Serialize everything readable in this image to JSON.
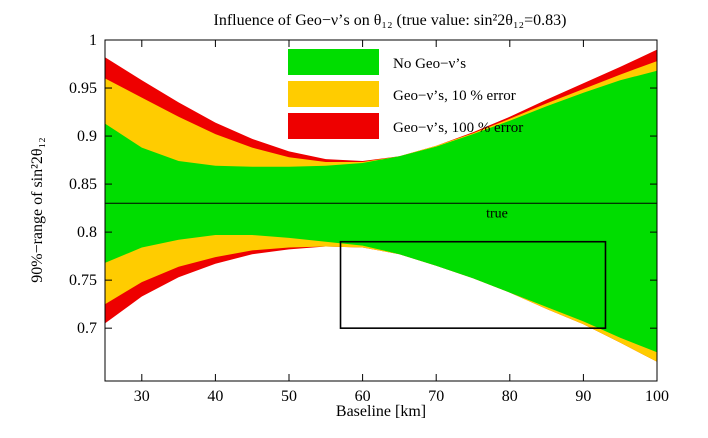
{
  "chart_data": {
    "type": "area",
    "title": "Influence of Geo−ν’s on θ₁₂ (true value: sin²2θ₁₂=0.83)",
    "xlabel": "Baseline [km]",
    "ylabel": "90%−range of sin²2θ₁₂",
    "xlim": [
      25,
      100
    ],
    "ylim": [
      0.645,
      1.0
    ],
    "xticks": [
      30,
      40,
      50,
      60,
      70,
      80,
      90,
      100
    ],
    "xtick_labels": [
      "30",
      "40",
      "50",
      "60",
      "70",
      "80",
      "90",
      "100"
    ],
    "yticks": [
      0.7,
      0.75,
      0.8,
      0.85,
      0.9,
      0.95,
      1.0
    ],
    "ytick_labels": [
      "0.7",
      "0.75",
      "0.8",
      "0.85",
      "0.9",
      "0.95",
      "1"
    ],
    "grid": false,
    "legend_position": "top-center",
    "x": [
      25,
      30,
      35,
      40,
      45,
      50,
      55,
      60,
      65,
      70,
      75,
      80,
      85,
      90,
      95,
      100
    ],
    "series": [
      {
        "name": "No Geo−ν’s",
        "color": "#00dd00",
        "upper": [
          0.913,
          0.888,
          0.874,
          0.869,
          0.868,
          0.868,
          0.869,
          0.872,
          0.879,
          0.889,
          0.902,
          0.916,
          0.931,
          0.945,
          0.958,
          0.968
        ],
        "lower": [
          0.768,
          0.784,
          0.792,
          0.797,
          0.797,
          0.794,
          0.79,
          0.786,
          0.777,
          0.765,
          0.752,
          0.737,
          0.722,
          0.707,
          0.69,
          0.675
        ]
      },
      {
        "name": "Geo−ν’s, 10 % error",
        "color": "#ffcc00",
        "upper": [
          0.96,
          0.94,
          0.92,
          0.902,
          0.888,
          0.878,
          0.873,
          0.873,
          0.879,
          0.89,
          0.903,
          0.918,
          0.934,
          0.949,
          0.964,
          0.978
        ],
        "lower": [
          0.725,
          0.748,
          0.764,
          0.774,
          0.781,
          0.784,
          0.785,
          0.784,
          0.777,
          0.765,
          0.752,
          0.737,
          0.72,
          0.704,
          0.685,
          0.665
        ]
      },
      {
        "name": "Geo−ν’s, 100 % error",
        "color": "#ee0000",
        "upper": [
          0.982,
          0.958,
          0.935,
          0.914,
          0.897,
          0.884,
          0.876,
          0.874,
          0.879,
          0.89,
          0.904,
          0.92,
          0.938,
          0.955,
          0.972,
          0.99
        ],
        "lower": [
          0.705,
          0.733,
          0.753,
          0.767,
          0.777,
          0.782,
          0.785,
          0.784,
          0.777,
          0.765,
          0.752,
          0.737,
          0.72,
          0.704,
          0.685,
          0.665
        ]
      }
    ],
    "true_value": 0.83,
    "true_label": "true",
    "box": {
      "x": [
        57,
        93
      ],
      "y": [
        0.7,
        0.79
      ]
    }
  }
}
